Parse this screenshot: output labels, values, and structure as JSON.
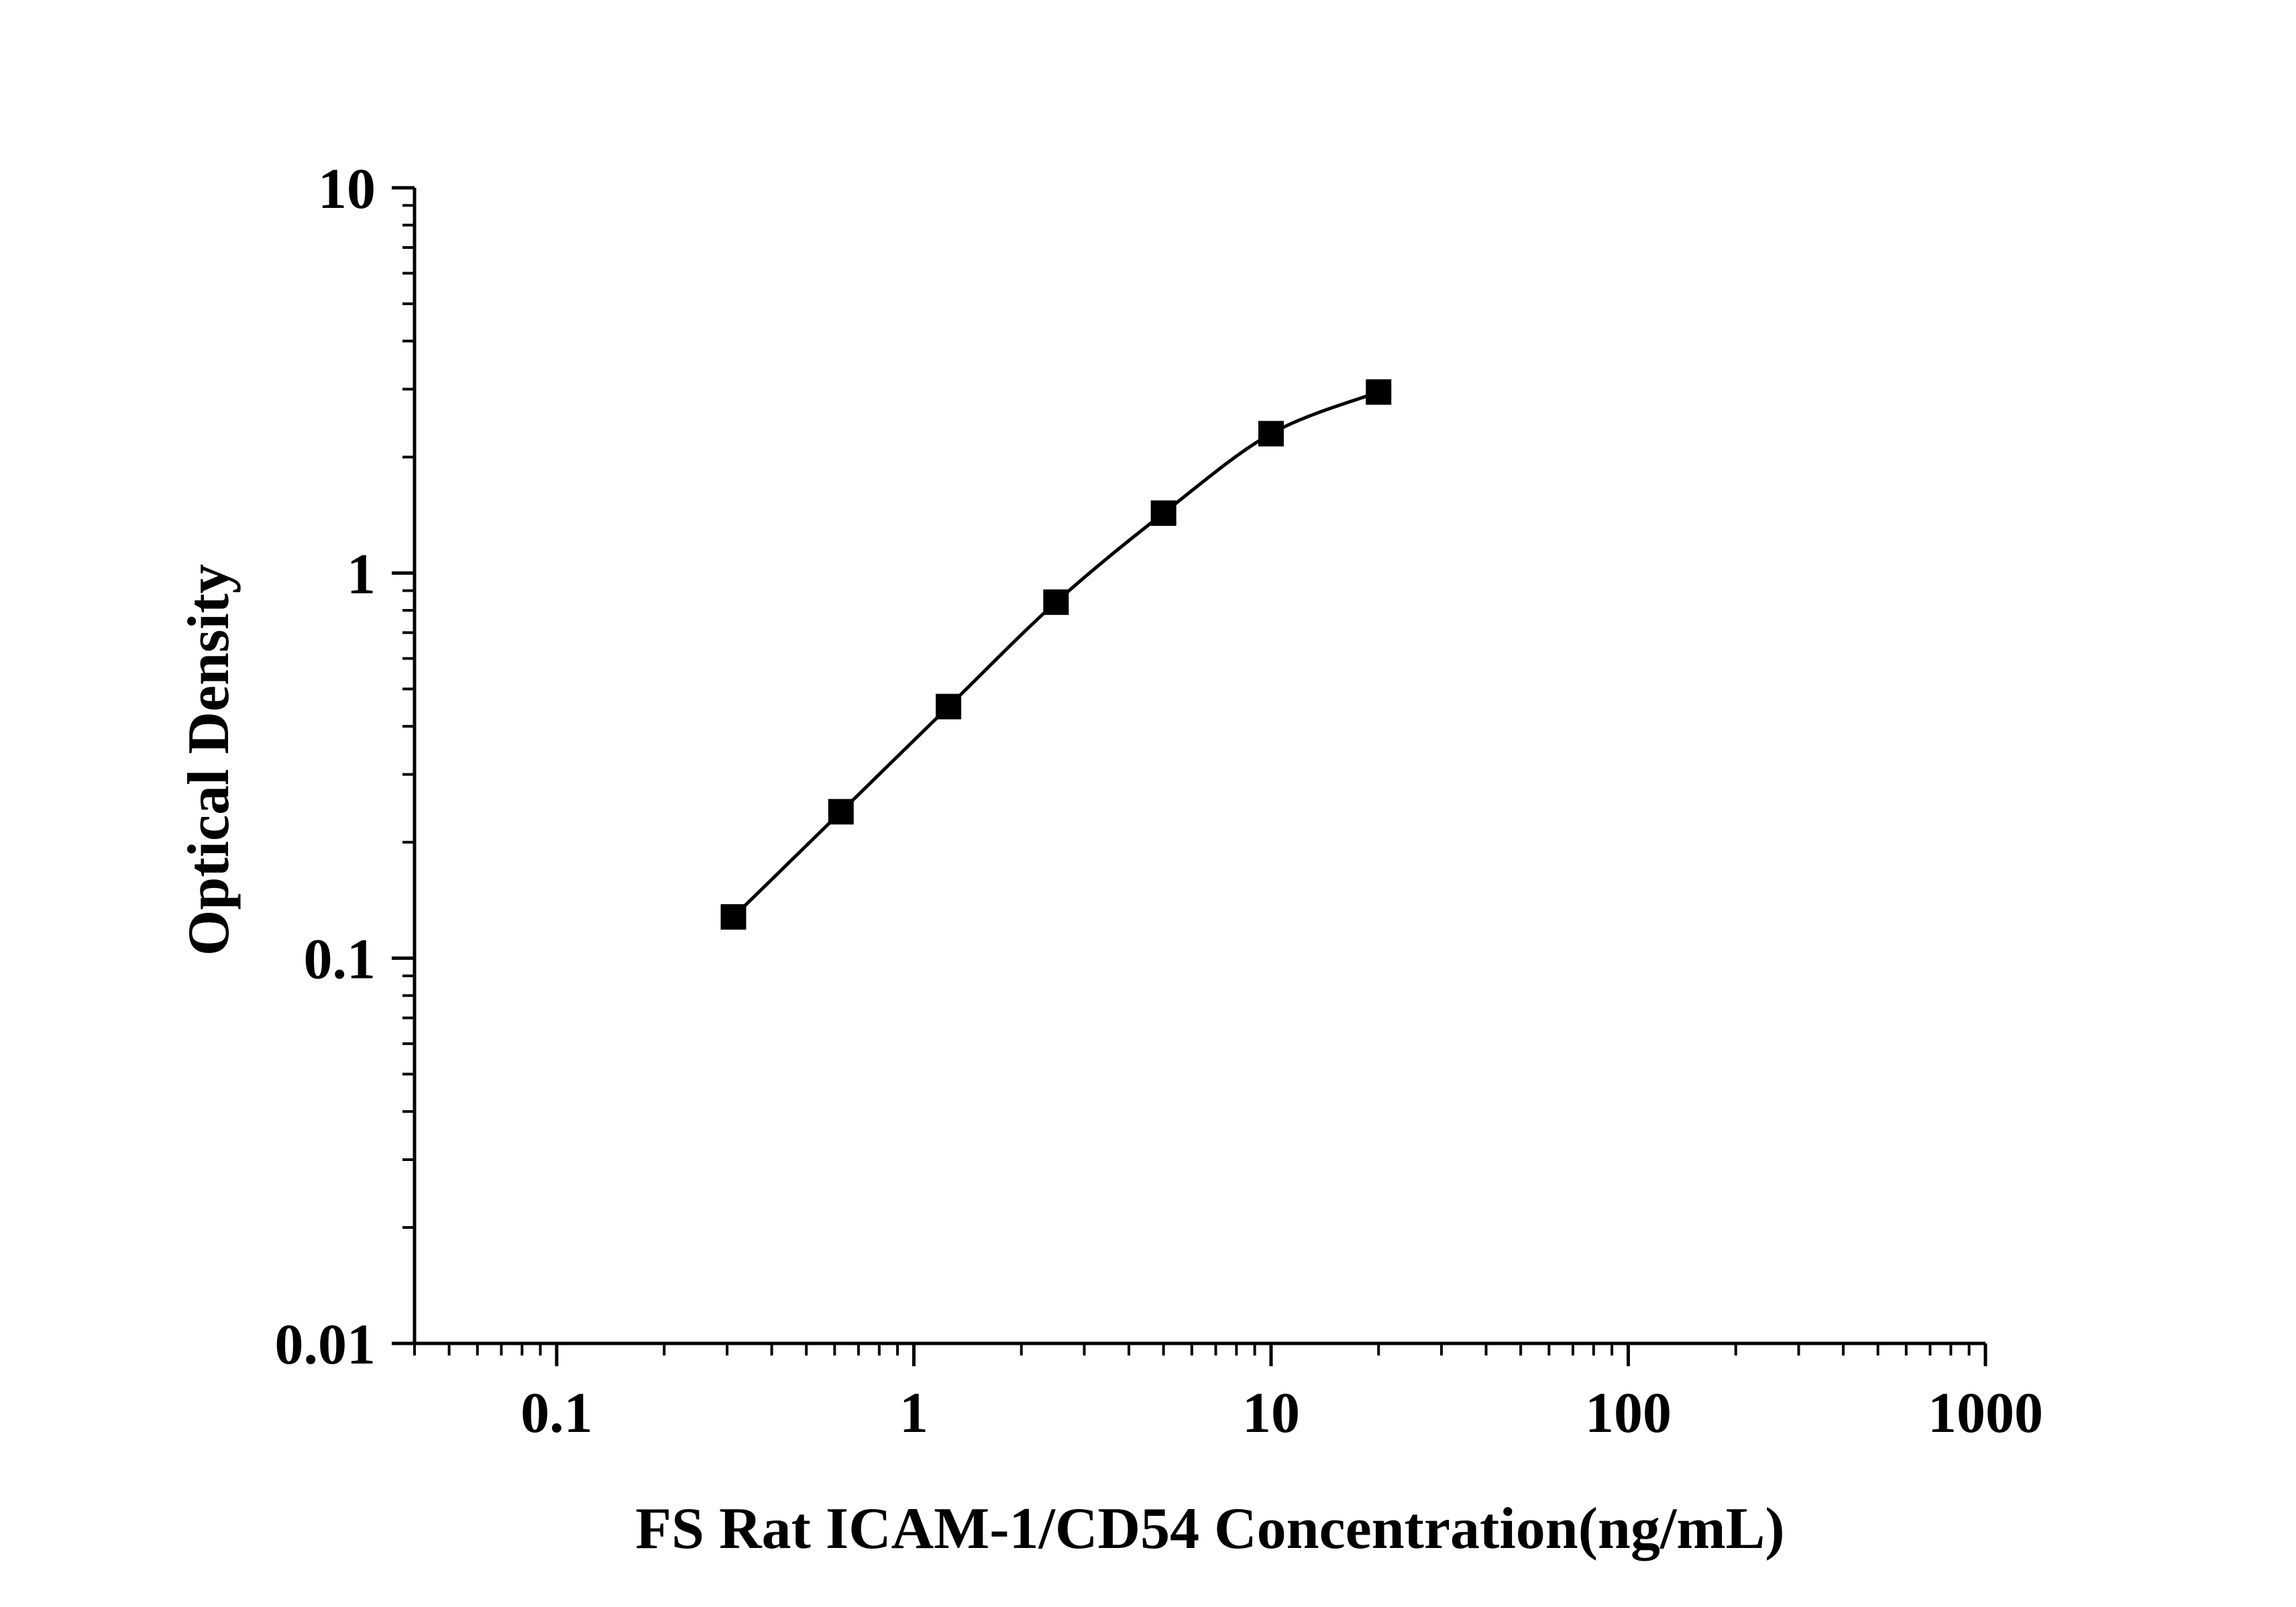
{
  "chart_data": {
    "type": "line",
    "title": "",
    "xlabel": "FS Rat ICAM-1/CD54 Concentration(ng/mL)",
    "ylabel": "Optical Density",
    "x_scale": "log",
    "y_scale": "log",
    "xlim": [
      0.04,
      1000
    ],
    "ylim": [
      0.01,
      10
    ],
    "x_ticks": [
      "0.1",
      "1",
      "10",
      "100",
      "1000"
    ],
    "x_tick_values": [
      0.1,
      1,
      10,
      100,
      1000
    ],
    "y_ticks": [
      "0.01",
      "0.1",
      "1",
      "10"
    ],
    "y_tick_values": [
      0.01,
      0.1,
      1,
      10
    ],
    "grid": false,
    "legend": "none",
    "series": [
      {
        "marker": "square",
        "color": "#000000",
        "x": [
          0.3125,
          0.625,
          1.25,
          2.5,
          5,
          10,
          20
        ],
        "y": [
          0.128,
          0.24,
          0.45,
          0.84,
          1.43,
          2.3,
          2.95
        ]
      }
    ]
  }
}
